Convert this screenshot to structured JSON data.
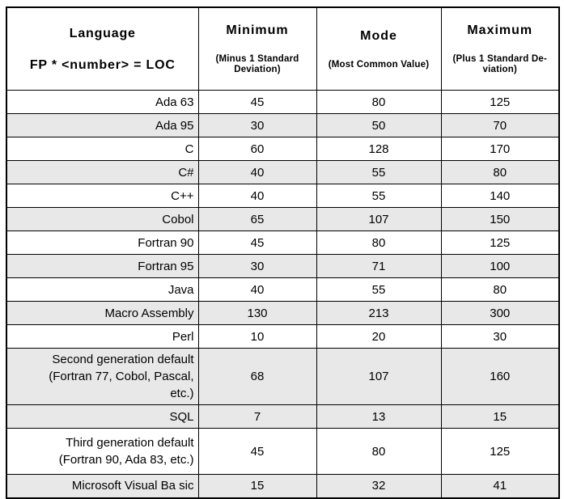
{
  "table": {
    "title_semantic": "Function Points to Lines of Code conversion ratios by language",
    "header": {
      "language": {
        "title": "Language",
        "subtitle": "FP * <number> = LOC"
      },
      "minimum": {
        "title": "Minimum",
        "subtitle_lines": [
          "(Minus 1 Standard",
          "Deviation)"
        ]
      },
      "mode": {
        "title": "Mode",
        "subtitle_lines": [
          "(Most Common Value)"
        ]
      },
      "maximum": {
        "title": "Maximum",
        "subtitle_lines": [
          "(Plus 1 Standard De-",
          "viation)"
        ]
      }
    },
    "rows": [
      {
        "language": "Ada 63",
        "minimum": "45",
        "mode": "80",
        "maximum": "125",
        "shaded": false
      },
      {
        "language": "Ada 95",
        "minimum": "30",
        "mode": "50",
        "maximum": "70",
        "shaded": true
      },
      {
        "language": "C",
        "minimum": "60",
        "mode": "128",
        "maximum": "170",
        "shaded": false
      },
      {
        "language": "C#",
        "minimum": "40",
        "mode": "55",
        "maximum": "80",
        "shaded": true
      },
      {
        "language": "C++",
        "minimum": "40",
        "mode": "55",
        "maximum": "140",
        "shaded": false
      },
      {
        "language": "Cobol",
        "minimum": "65",
        "mode": "107",
        "maximum": "150",
        "shaded": true
      },
      {
        "language": "Fortran 90",
        "minimum": "45",
        "mode": "80",
        "maximum": "125",
        "shaded": false
      },
      {
        "language": "Fortran 95",
        "minimum": "30",
        "mode": "71",
        "maximum": "100",
        "shaded": true
      },
      {
        "language": "Java",
        "minimum": "40",
        "mode": "55",
        "maximum": "80",
        "shaded": false
      },
      {
        "language": "Macro Assembly",
        "minimum": "130",
        "mode": "213",
        "maximum": "300",
        "shaded": true
      },
      {
        "language": "Perl",
        "minimum": "10",
        "mode": "20",
        "maximum": "30",
        "shaded": false
      },
      {
        "language": [
          "Second generation default",
          "(Fortran 77, Cobol, Pascal,",
          "etc.)"
        ],
        "minimum": "68",
        "mode": "107",
        "maximum": "160",
        "shaded": true
      },
      {
        "language": "SQL",
        "minimum": "7",
        "mode": "13",
        "maximum": "15",
        "shaded": true
      },
      {
        "language": [
          "Third generation default",
          "(Fortran 90, Ada 83, etc.)"
        ],
        "minimum": "45",
        "mode": "80",
        "maximum": "125",
        "shaded": false
      },
      {
        "language": "Microsoft Visual Ba sic",
        "minimum": "15",
        "mode": "32",
        "maximum": "41",
        "shaded": true
      }
    ]
  }
}
